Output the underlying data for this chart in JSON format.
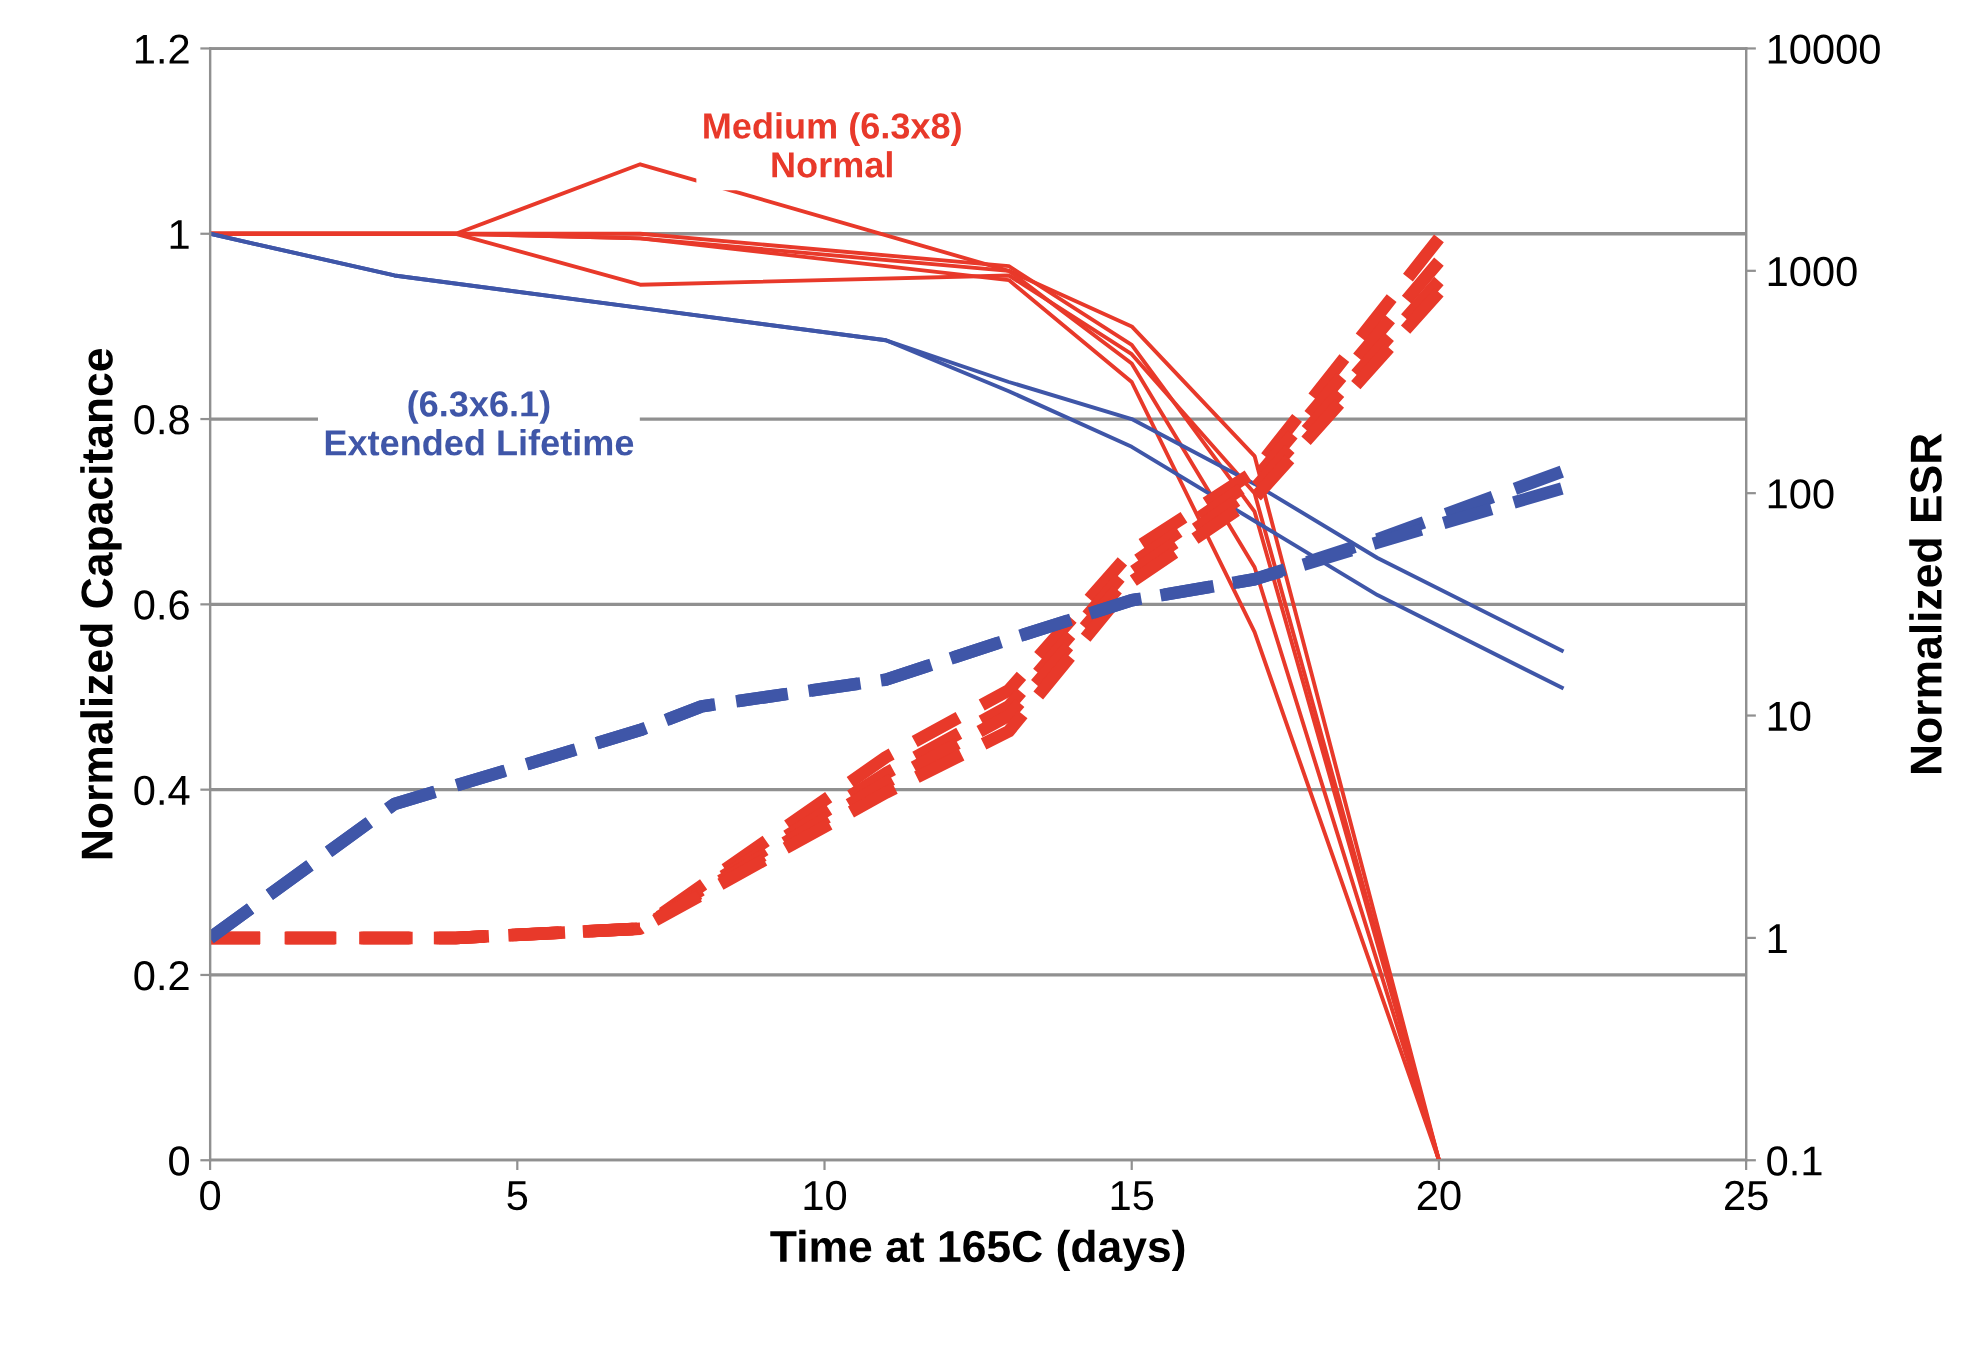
{
  "chart_data": {
    "type": "line",
    "xlabel": "Time at 165C (days)",
    "ylabel": "Normalized Capacitance",
    "y2label": "Normalized ESR",
    "xlim": [
      0,
      25
    ],
    "xticks": [
      0,
      5,
      10,
      15,
      20,
      25
    ],
    "ylim": [
      0,
      1.2
    ],
    "yticks": [
      0,
      0.2,
      0.4,
      0.6,
      0.8,
      1,
      1.2
    ],
    "y2lim": [
      0.1,
      10000
    ],
    "y2ticks": [
      0.1,
      1,
      10,
      100,
      1000,
      10000
    ],
    "log": "y2",
    "grid": "y",
    "legend": false,
    "marker": "none",
    "series": [
      {
        "color": "#e8392a",
        "line_style": "solid",
        "x": [
          0,
          4,
          7,
          13,
          15,
          17,
          20
        ],
        "values": [
          1,
          1,
          1.075,
          0.96,
          0.9,
          0.76,
          0
        ]
      },
      {
        "color": "#e8392a",
        "line_style": "solid",
        "x": [
          0,
          4,
          7,
          13,
          15,
          17,
          20
        ],
        "values": [
          1,
          1,
          0.945,
          0.955,
          0.87,
          0.72,
          0
        ]
      },
      {
        "color": "#e8392a",
        "line_style": "solid",
        "x": [
          0,
          4,
          7,
          13,
          15,
          17,
          20
        ],
        "values": [
          1,
          1,
          1.0,
          0.965,
          0.88,
          0.7,
          0
        ]
      },
      {
        "color": "#e8392a",
        "line_style": "solid",
        "x": [
          0,
          4,
          7,
          13,
          15,
          17,
          20
        ],
        "values": [
          1,
          1,
          0.995,
          0.96,
          0.86,
          0.64,
          0
        ]
      },
      {
        "color": "#e8392a",
        "line_style": "solid",
        "x": [
          0,
          4,
          7,
          13,
          15,
          17,
          20
        ],
        "values": [
          1,
          1,
          0.995,
          0.95,
          0.84,
          0.57,
          0
        ]
      },
      {
        "color": "#3f56a8",
        "line_style": "solid",
        "x": [
          0,
          3,
          7,
          11,
          13,
          15,
          17,
          19,
          22
        ],
        "values": [
          1,
          0.955,
          0.92,
          0.885,
          0.84,
          0.8,
          0.73,
          0.65,
          0.55
        ]
      },
      {
        "color": "#3f56a8",
        "line_style": "solid",
        "x": [
          0,
          3,
          7,
          11,
          13,
          15,
          17,
          19,
          22
        ],
        "values": [
          1,
          0.955,
          0.92,
          0.885,
          0.83,
          0.77,
          0.69,
          0.61,
          0.51
        ]
      },
      {
        "color": "#e8392a",
        "line_style": "dashed",
        "axis": "y2",
        "x": [
          0,
          4,
          7,
          11,
          13,
          15,
          17,
          20
        ],
        "values": [
          1,
          1,
          1.1,
          6.5,
          13,
          55,
          125,
          1400
        ]
      },
      {
        "color": "#e8392a",
        "line_style": "dashed",
        "axis": "y2",
        "x": [
          0,
          4,
          7,
          11,
          13,
          15,
          17,
          20
        ],
        "values": [
          1,
          1,
          1.1,
          5.5,
          11,
          48,
          115,
          1100
        ]
      },
      {
        "color": "#e8392a",
        "line_style": "dashed",
        "axis": "y2",
        "x": [
          0,
          4,
          7,
          11,
          13,
          15,
          17,
          20
        ],
        "values": [
          1,
          1,
          1.1,
          5,
          10,
          44,
          105,
          900
        ]
      },
      {
        "color": "#e8392a",
        "line_style": "dashed",
        "axis": "y2",
        "x": [
          0,
          4,
          7,
          11,
          13,
          15,
          17,
          20
        ],
        "values": [
          1,
          1,
          1.1,
          4.5,
          8.5,
          40,
          95,
          800
        ]
      },
      {
        "color": "#3f56a8",
        "line_style": "dashed",
        "axis": "y2",
        "x": [
          0,
          3,
          7,
          8,
          11,
          13,
          15,
          17,
          19,
          22
        ],
        "values": [
          1,
          4,
          8.6,
          11,
          14.5,
          22,
          33,
          41,
          62,
          125
        ]
      },
      {
        "color": "#3f56a8",
        "line_style": "dashed",
        "axis": "y2",
        "x": [
          0,
          3,
          7,
          8,
          11,
          13,
          15,
          17,
          19,
          22
        ],
        "values": [
          1,
          4,
          8.6,
          11,
          14.5,
          22,
          33,
          41,
          60,
          105
        ]
      }
    ],
    "annotations": [
      "Medium (6.3x8)\nNormal",
      "(6.3x6.1)\nExtended Lifetime"
    ]
  }
}
